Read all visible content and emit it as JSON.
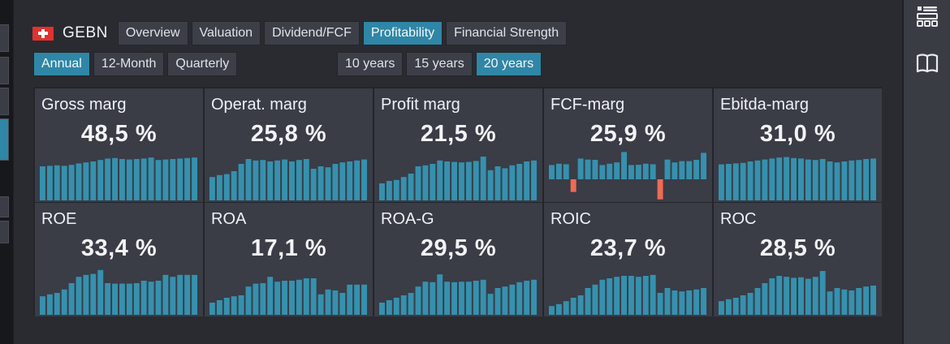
{
  "ticker": "GEBN",
  "colors": {
    "bar": "#3591ae",
    "negative": "#f06a55",
    "accent": "#2f86a6"
  },
  "icons": {
    "flag": "swiss-flag-icon",
    "sidebar": [
      "panel-layout-icon",
      "book-icon"
    ]
  },
  "nav_tabs": [
    {
      "label": "Overview",
      "active": false
    },
    {
      "label": "Valuation",
      "active": false
    },
    {
      "label": "Dividend/FCF",
      "active": false
    },
    {
      "label": "Profitability",
      "active": true
    },
    {
      "label": "Financial Strength",
      "active": false
    }
  ],
  "period_buttons": [
    {
      "label": "Annual",
      "active": true
    },
    {
      "label": "12-Month",
      "active": false
    },
    {
      "label": "Quarterly",
      "active": false
    }
  ],
  "range_buttons": [
    {
      "label": "10 years",
      "active": false
    },
    {
      "label": "15 years",
      "active": false
    },
    {
      "label": "20 years",
      "active": true
    }
  ],
  "metrics": [
    {
      "title": "Gross marg",
      "value": "48,5 %",
      "bars": [
        0.7,
        0.71,
        0.72,
        0.71,
        0.73,
        0.76,
        0.78,
        0.8,
        0.83,
        0.86,
        0.87,
        0.85,
        0.84,
        0.85,
        0.86,
        0.88,
        0.83,
        0.84,
        0.85,
        0.86,
        0.87,
        0.88
      ]
    },
    {
      "title": "Operat. marg",
      "value": "25,8 %",
      "bars": [
        0.48,
        0.52,
        0.54,
        0.6,
        0.75,
        0.85,
        0.82,
        0.83,
        0.8,
        0.82,
        0.84,
        0.8,
        0.83,
        0.85,
        0.65,
        0.7,
        0.68,
        0.75,
        0.78,
        0.8,
        0.82,
        0.84
      ]
    },
    {
      "title": "Profit marg",
      "value": "21,5 %",
      "bars": [
        0.35,
        0.4,
        0.42,
        0.48,
        0.55,
        0.7,
        0.72,
        0.75,
        0.82,
        0.8,
        0.79,
        0.78,
        0.79,
        0.81,
        0.9,
        0.62,
        0.7,
        0.66,
        0.72,
        0.75,
        0.8,
        0.82
      ]
    },
    {
      "title": "FCF-marg",
      "value": "25,9 %",
      "bars": [
        0.55,
        0.6,
        0.58,
        -0.6,
        0.8,
        0.76,
        0.75,
        0.55,
        0.6,
        0.65,
        1.05,
        0.55,
        0.56,
        0.6,
        0.58,
        -0.95,
        0.76,
        0.65,
        0.7,
        0.7,
        0.75,
        1.02
      ]
    },
    {
      "title": "Ebitda-marg",
      "value": "31,0 %",
      "bars": [
        0.74,
        0.75,
        0.76,
        0.77,
        0.8,
        0.82,
        0.84,
        0.86,
        0.88,
        0.89,
        0.87,
        0.86,
        0.84,
        0.83,
        0.85,
        0.8,
        0.78,
        0.8,
        0.82,
        0.83,
        0.85,
        0.86
      ]
    }
  ],
  "returns": [
    {
      "title": "ROE",
      "value": "33,4 %",
      "bars": [
        0.38,
        0.42,
        0.45,
        0.52,
        0.65,
        0.78,
        0.82,
        0.84,
        0.92,
        0.65,
        0.64,
        0.64,
        0.64,
        0.65,
        0.7,
        0.68,
        0.7,
        0.82,
        0.78,
        0.82,
        0.82,
        0.82
      ]
    },
    {
      "title": "ROA",
      "value": "17,1 %",
      "bars": [
        0.25,
        0.3,
        0.35,
        0.38,
        0.4,
        0.58,
        0.64,
        0.65,
        0.78,
        0.68,
        0.7,
        0.7,
        0.72,
        0.75,
        0.75,
        0.42,
        0.52,
        0.5,
        0.45,
        0.62,
        0.62,
        0.62
      ]
    },
    {
      "title": "ROA-G",
      "value": "29,5 %",
      "bars": [
        0.25,
        0.3,
        0.35,
        0.4,
        0.45,
        0.58,
        0.68,
        0.67,
        0.83,
        0.68,
        0.67,
        0.68,
        0.68,
        0.7,
        0.72,
        0.43,
        0.55,
        0.58,
        0.62,
        0.67,
        0.7,
        0.72
      ]
    },
    {
      "title": "ROIC",
      "value": "23,7 %",
      "bars": [
        0.18,
        0.22,
        0.28,
        0.35,
        0.4,
        0.55,
        0.62,
        0.72,
        0.75,
        0.78,
        0.8,
        0.8,
        0.78,
        0.8,
        0.82,
        0.45,
        0.55,
        0.5,
        0.48,
        0.5,
        0.52,
        0.55
      ]
    },
    {
      "title": "ROC",
      "value": "28,5 %",
      "bars": [
        0.28,
        0.32,
        0.35,
        0.4,
        0.45,
        0.55,
        0.65,
        0.75,
        0.8,
        0.78,
        0.76,
        0.77,
        0.74,
        0.78,
        0.9,
        0.48,
        0.55,
        0.52,
        0.5,
        0.55,
        0.58,
        0.6
      ]
    }
  ]
}
